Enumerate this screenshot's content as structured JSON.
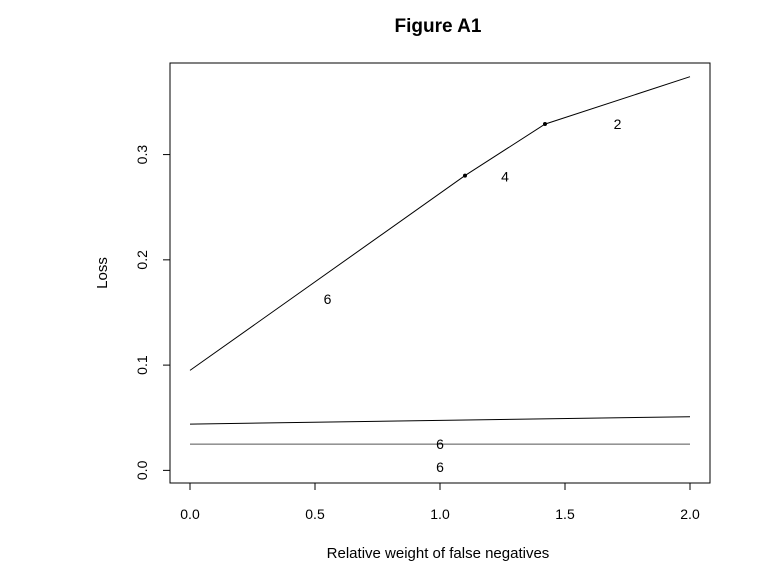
{
  "chart_data": {
    "type": "line",
    "title": "Figure A1",
    "xlabel": "Relative weight of false negatives",
    "ylabel": "Loss",
    "xlim": [
      -0.08,
      2.08
    ],
    "ylim": [
      -0.012,
      0.387
    ],
    "x_ticks": [
      "0.0",
      "0.5",
      "1.0",
      "1.5",
      "2.0"
    ],
    "y_ticks": [
      "0.0",
      "0.1",
      "0.2",
      "0.3"
    ],
    "series": [
      {
        "x": [
          0.0,
          1.1,
          1.42,
          2.0
        ],
        "values": [
          0.095,
          0.28,
          0.329,
          0.374
        ],
        "points": [
          1.1,
          1.42
        ],
        "color": "#000000"
      },
      {
        "x": [
          0.0,
          2.0
        ],
        "values": [
          0.044,
          0.051
        ],
        "color": "#000000"
      },
      {
        "x": [
          0.0,
          2.0
        ],
        "values": [
          0.025,
          0.025
        ],
        "color": "#555555"
      }
    ],
    "annotations": [
      {
        "text": "2",
        "x": 1.71,
        "y": 0.329
      },
      {
        "text": "4",
        "x": 1.26,
        "y": 0.279
      },
      {
        "text": "6",
        "x": 0.55,
        "y": 0.163
      },
      {
        "text": "6",
        "x": 1.0,
        "y": 0.025
      },
      {
        "text": "6",
        "x": 1.0,
        "y": 0.003
      }
    ],
    "grid": false,
    "legend": "none"
  }
}
